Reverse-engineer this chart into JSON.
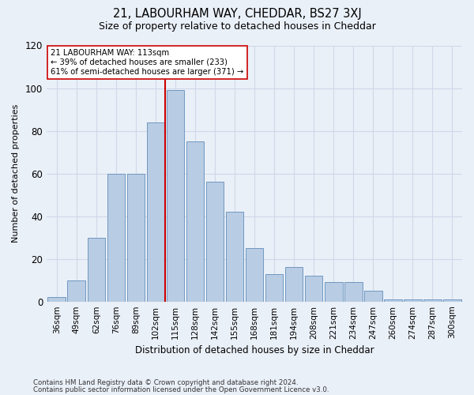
{
  "title": "21, LABOURHAM WAY, CHEDDAR, BS27 3XJ",
  "subtitle": "Size of property relative to detached houses in Cheddar",
  "xlabel": "Distribution of detached houses by size in Cheddar",
  "ylabel": "Number of detached properties",
  "categories": [
    "36sqm",
    "49sqm",
    "62sqm",
    "76sqm",
    "89sqm",
    "102sqm",
    "115sqm",
    "128sqm",
    "142sqm",
    "155sqm",
    "168sqm",
    "181sqm",
    "194sqm",
    "208sqm",
    "221sqm",
    "234sqm",
    "247sqm",
    "260sqm",
    "274sqm",
    "287sqm",
    "300sqm"
  ],
  "values": [
    2,
    10,
    30,
    60,
    60,
    84,
    99,
    75,
    56,
    42,
    25,
    13,
    16,
    12,
    9,
    9,
    5,
    1,
    1,
    1,
    1
  ],
  "bar_color": "#b8cce4",
  "bar_edge_color": "#7098c0",
  "marker_bar_index": 6,
  "marker_line_color": "#cc0000",
  "annotation_line1": "21 LABOURHAM WAY: 113sqm",
  "annotation_line2": "← 39% of detached houses are smaller (233)",
  "annotation_line3": "61% of semi-detached houses are larger (371) →",
  "annotation_box_color": "#ffffff",
  "annotation_box_edge": "#cc0000",
  "ylim": [
    0,
    120
  ],
  "yticks": [
    0,
    20,
    40,
    60,
    80,
    100,
    120
  ],
  "grid_color": "#d0d8e8",
  "background_color": "#eaf0f8",
  "title_fontsize": 10.5,
  "subtitle_fontsize": 9,
  "footer1": "Contains HM Land Registry data © Crown copyright and database right 2024.",
  "footer2": "Contains public sector information licensed under the Open Government Licence v3.0."
}
